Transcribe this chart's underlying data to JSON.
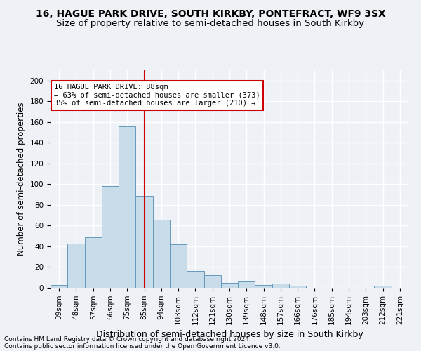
{
  "title1": "16, HAGUE PARK DRIVE, SOUTH KIRKBY, PONTEFRACT, WF9 3SX",
  "title2": "Size of property relative to semi-detached houses in South Kirkby",
  "xlabel": "Distribution of semi-detached houses by size in South Kirkby",
  "ylabel": "Number of semi-detached properties",
  "footnote1": "Contains HM Land Registry data © Crown copyright and database right 2024.",
  "footnote2": "Contains public sector information licensed under the Open Government Licence v3.0.",
  "categories": [
    "39sqm",
    "48sqm",
    "57sqm",
    "66sqm",
    "75sqm",
    "85sqm",
    "94sqm",
    "103sqm",
    "112sqm",
    "121sqm",
    "130sqm",
    "139sqm",
    "148sqm",
    "157sqm",
    "166sqm",
    "176sqm",
    "185sqm",
    "194sqm",
    "203sqm",
    "212sqm",
    "221sqm"
  ],
  "values": [
    3,
    43,
    49,
    98,
    156,
    89,
    66,
    42,
    16,
    12,
    5,
    7,
    3,
    4,
    2,
    0,
    0,
    0,
    0,
    2,
    0
  ],
  "bar_color": "#c9dcea",
  "bar_edge_color": "#6699bb",
  "vline_index": 5.5,
  "vline_color": "#cc0000",
  "annotation_text": "16 HAGUE PARK DRIVE: 88sqm\n← 63% of semi-detached houses are smaller (373)\n35% of semi-detached houses are larger (210) →",
  "annotation_box_color": "#ffffff",
  "annotation_box_edge": "#cc0000",
  "ylim": [
    0,
    210
  ],
  "yticks": [
    0,
    20,
    40,
    60,
    80,
    100,
    120,
    140,
    160,
    180,
    200
  ],
  "background_color": "#eef2f7",
  "grid_color": "#ffffff",
  "title1_fontsize": 10,
  "title2_fontsize": 9.5,
  "tick_fontsize": 7.5,
  "ylabel_fontsize": 8.5,
  "xlabel_fontsize": 9,
  "footnote_fontsize": 6.5
}
